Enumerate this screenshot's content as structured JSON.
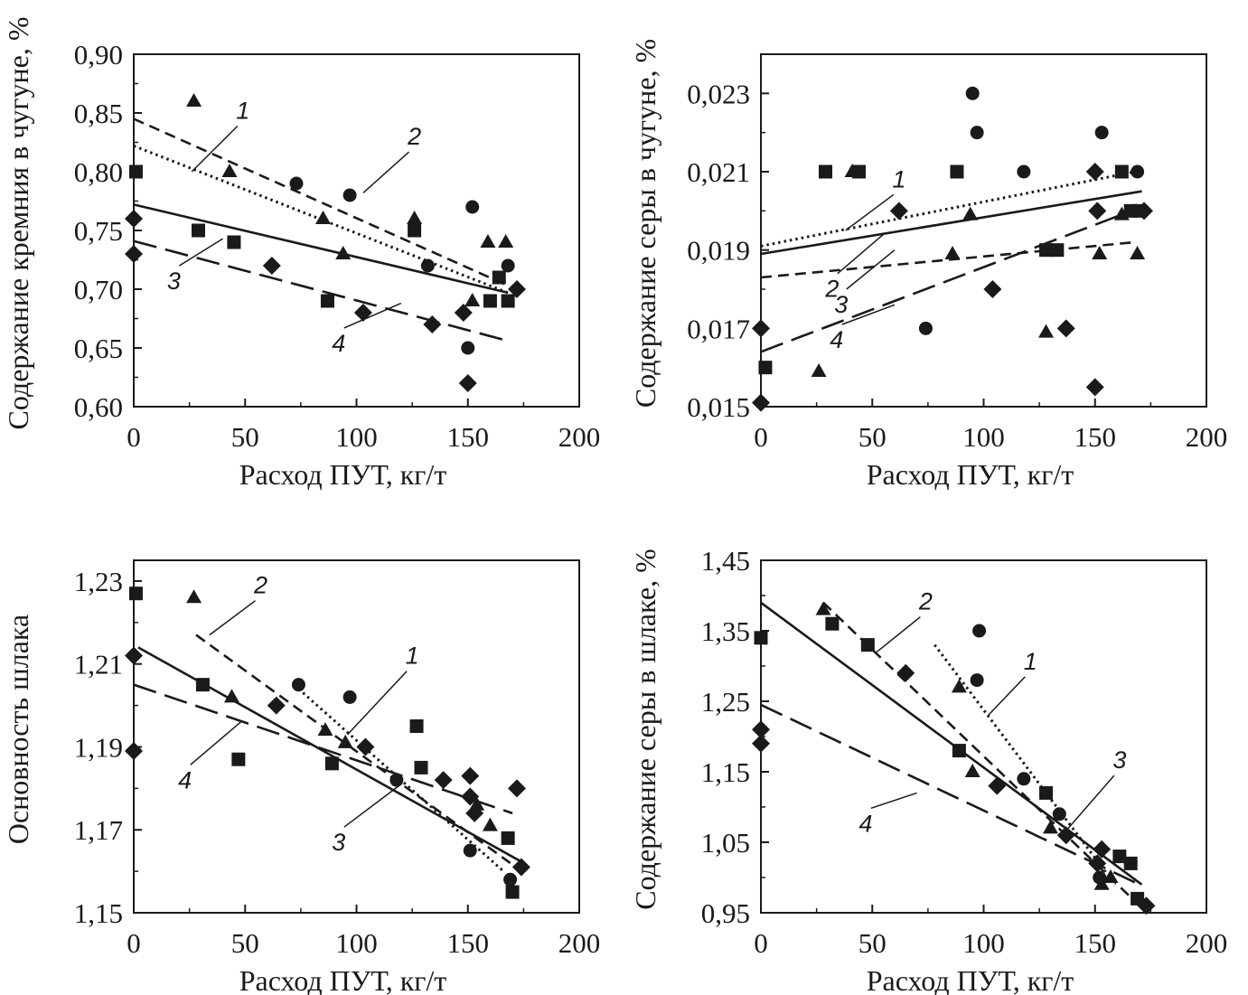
{
  "chart_data": [
    {
      "type": "scatter",
      "xlabel": "Расход ПУТ, кг/т",
      "ylabel": "Содержание кремния в чугуне, %",
      "xlim": [
        0,
        200
      ],
      "ylim": [
        0.6,
        0.9
      ],
      "xticks": [
        0,
        50,
        100,
        150,
        200
      ],
      "yticks": [
        0.6,
        0.65,
        0.7,
        0.75,
        0.8,
        0.85,
        0.9
      ],
      "xtick_labels": [
        "0",
        "50",
        "100",
        "150",
        "200"
      ],
      "ytick_labels": [
        "0,60",
        "0,65",
        "0,70",
        "0,75",
        "0,80",
        "0,85",
        "0,90"
      ],
      "grid": false,
      "series": [
        {
          "label": "1",
          "marker": "circle",
          "line": "dotted",
          "points": [
            [
              73,
              0.79
            ],
            [
              97,
              0.78
            ],
            [
              132,
              0.72
            ],
            [
              152,
              0.77
            ],
            [
              150,
              0.65
            ],
            [
              168,
              0.72
            ]
          ],
          "fit": [
            [
              0,
              0.822
            ],
            [
              168,
              0.697
            ]
          ]
        },
        {
          "label": "2",
          "marker": "triangle",
          "line": "dashed",
          "points": [
            [
              27,
              0.86
            ],
            [
              43,
              0.8
            ],
            [
              85,
              0.76
            ],
            [
              94,
              0.73
            ],
            [
              126,
              0.76
            ],
            [
              152,
              0.69
            ],
            [
              159,
              0.74
            ],
            [
              167,
              0.74
            ]
          ],
          "fit": [
            [
              0,
              0.845
            ],
            [
              168,
              0.703
            ]
          ]
        },
        {
          "label": "3",
          "marker": "square",
          "line": "solid",
          "points": [
            [
              1,
              0.8
            ],
            [
              29,
              0.75
            ],
            [
              45,
              0.74
            ],
            [
              87,
              0.69
            ],
            [
              126,
              0.75
            ],
            [
              160,
              0.69
            ],
            [
              164,
              0.71
            ],
            [
              168,
              0.69
            ]
          ],
          "fit": [
            [
              0,
              0.772
            ],
            [
              168,
              0.697
            ]
          ]
        },
        {
          "label": "4",
          "marker": "diamond",
          "line": "longdash",
          "points": [
            [
              0,
              0.76
            ],
            [
              0,
              0.73
            ],
            [
              62,
              0.72
            ],
            [
              103,
              0.68
            ],
            [
              134,
              0.67
            ],
            [
              148,
              0.68
            ],
            [
              150,
              0.62
            ],
            [
              172,
              0.7
            ]
          ],
          "fit": [
            [
              0,
              0.741
            ],
            [
              166,
              0.657
            ]
          ]
        }
      ],
      "annotations": [
        {
          "text": "1",
          "x": 49,
          "y": 0.845,
          "to": [
            26,
            0.8
          ]
        },
        {
          "text": "2",
          "x": 126,
          "y": 0.823,
          "to": [
            103,
            0.782
          ]
        },
        {
          "text": "3",
          "x": 18,
          "y": 0.7,
          "to": [
            40,
            0.743
          ]
        },
        {
          "text": "4",
          "x": 92,
          "y": 0.647,
          "to": [
            120,
            0.688
          ]
        }
      ]
    },
    {
      "type": "scatter",
      "xlabel": "Расход ПУТ, кг/т",
      "ylabel": "Содержание серы в чугуне, %",
      "xlim": [
        0,
        200
      ],
      "ylim": [
        0.015,
        0.024
      ],
      "xticks": [
        0,
        50,
        100,
        150,
        200
      ],
      "yticks": [
        0.015,
        0.017,
        0.019,
        0.021,
        0.023
      ],
      "xtick_labels": [
        "0",
        "50",
        "100",
        "150",
        "200"
      ],
      "ytick_labels": [
        "0,015",
        "0,017",
        "0,019",
        "0,021",
        "0,023"
      ],
      "grid": false,
      "series": [
        {
          "label": "1",
          "marker": "circle",
          "line": "dotted",
          "points": [
            [
              74,
              0.017
            ],
            [
              95,
              0.023
            ],
            [
              97,
              0.022
            ],
            [
              118,
              0.021
            ],
            [
              153,
              0.022
            ],
            [
              169,
              0.021
            ]
          ],
          "fit": [
            [
              0,
              0.0191
            ],
            [
              168,
              0.021
            ]
          ]
        },
        {
          "label": "2",
          "marker": "triangle",
          "line": "dashed",
          "points": [
            [
              26,
              0.0159
            ],
            [
              41,
              0.021
            ],
            [
              86,
              0.0189
            ],
            [
              94,
              0.0199
            ],
            [
              128,
              0.0169
            ],
            [
              152,
              0.0189
            ],
            [
              162,
              0.0199
            ],
            [
              169,
              0.0189
            ]
          ],
          "fit": [
            [
              0,
              0.0183
            ],
            [
              168,
              0.0192
            ]
          ]
        },
        {
          "label": "3",
          "marker": "square",
          "line": "solid",
          "points": [
            [
              2,
              0.016
            ],
            [
              29,
              0.021
            ],
            [
              44,
              0.021
            ],
            [
              88,
              0.021
            ],
            [
              128,
              0.019
            ],
            [
              133,
              0.019
            ],
            [
              162,
              0.021
            ],
            [
              166,
              0.02
            ],
            [
              170,
              0.02
            ]
          ],
          "fit": [
            [
              0,
              0.0189
            ],
            [
              171,
              0.0205
            ]
          ]
        },
        {
          "label": "4",
          "marker": "diamond",
          "line": "longdash",
          "points": [
            [
              0,
              0.017
            ],
            [
              0,
              0.0151
            ],
            [
              62,
              0.02
            ],
            [
              104,
              0.018
            ],
            [
              137,
              0.017
            ],
            [
              150,
              0.0155
            ],
            [
              150,
              0.021
            ],
            [
              151,
              0.02
            ],
            [
              172,
              0.02
            ]
          ],
          "fit": [
            [
              0,
              0.0164
            ],
            [
              171,
              0.0201
            ]
          ]
        }
      ],
      "annotations": [
        {
          "text": "1",
          "x": 62,
          "y": 0.0206,
          "to": [
            38,
            0.0195
          ]
        },
        {
          "text": "2",
          "x": 32,
          "y": 0.0178,
          "to": [
            55,
            0.0194
          ]
        },
        {
          "text": "3",
          "x": 36,
          "y": 0.0174,
          "to": [
            60,
            0.019
          ]
        },
        {
          "text": "4",
          "x": 34,
          "y": 0.0165,
          "to": [
            60,
            0.0176
          ]
        }
      ]
    },
    {
      "type": "scatter",
      "xlabel": "Расход ПУТ, кг/т",
      "ylabel": "Основность шлака",
      "xlim": [
        0,
        200
      ],
      "ylim": [
        1.15,
        1.235
      ],
      "xticks": [
        0,
        50,
        100,
        150,
        200
      ],
      "yticks": [
        1.15,
        1.17,
        1.19,
        1.21,
        1.23
      ],
      "xtick_labels": [
        "0",
        "50",
        "100",
        "150",
        "200"
      ],
      "ytick_labels": [
        "1,15",
        "1,17",
        "1,19",
        "1,21",
        "1,23"
      ],
      "grid": false,
      "series": [
        {
          "label": "1",
          "marker": "circle",
          "line": "dotted",
          "points": [
            [
              74,
              1.205
            ],
            [
              97,
              1.202
            ],
            [
              118,
              1.182
            ],
            [
              151,
              1.165
            ],
            [
              169,
              1.158
            ]
          ],
          "fit": [
            [
              74,
              1.204
            ],
            [
              166,
              1.16
            ]
          ]
        },
        {
          "label": "2",
          "marker": "triangle",
          "line": "dashed",
          "points": [
            [
              27,
              1.226
            ],
            [
              44,
              1.202
            ],
            [
              86,
              1.194
            ],
            [
              95,
              1.191
            ],
            [
              154,
              1.176
            ],
            [
              160,
              1.171
            ]
          ],
          "fit": [
            [
              28,
              1.217
            ],
            [
              169,
              1.162
            ]
          ]
        },
        {
          "label": "3",
          "marker": "square",
          "line": "solid",
          "points": [
            [
              1,
              1.227
            ],
            [
              31,
              1.205
            ],
            [
              47,
              1.187
            ],
            [
              89,
              1.186
            ],
            [
              127,
              1.195
            ],
            [
              129,
              1.185
            ],
            [
              168,
              1.168
            ],
            [
              170,
              1.155
            ]
          ],
          "fit": [
            [
              2,
              1.214
            ],
            [
              175,
              1.162
            ]
          ]
        },
        {
          "label": "4",
          "marker": "diamond",
          "line": "longdash",
          "points": [
            [
              0,
              1.212
            ],
            [
              0,
              1.189
            ],
            [
              64,
              1.2
            ],
            [
              104,
              1.19
            ],
            [
              139,
              1.182
            ],
            [
              151,
              1.183
            ],
            [
              151,
              1.178
            ],
            [
              153,
              1.174
            ],
            [
              172,
              1.18
            ],
            [
              174,
              1.161
            ]
          ],
          "fit": [
            [
              0,
              1.205
            ],
            [
              170,
              1.174
            ]
          ]
        }
      ],
      "annotations": [
        {
          "text": "1",
          "x": 125,
          "y": 1.21,
          "to": [
            96,
            1.193
          ]
        },
        {
          "text": "2",
          "x": 57,
          "y": 1.227,
          "to": [
            34,
            1.217
          ]
        },
        {
          "text": "3",
          "x": 92,
          "y": 1.165,
          "to": [
            120,
            1.181
          ]
        },
        {
          "text": "4",
          "x": 23,
          "y": 1.18,
          "to": [
            48,
            1.196
          ]
        }
      ]
    },
    {
      "type": "scatter",
      "xlabel": "Расход ПУТ, кг/т",
      "ylabel": "Содержание серы в шлаке, %",
      "xlim": [
        0,
        200
      ],
      "ylim": [
        0.95,
        1.45
      ],
      "xticks": [
        0,
        50,
        100,
        150,
        200
      ],
      "yticks": [
        0.95,
        1.05,
        1.15,
        1.25,
        1.35,
        1.45
      ],
      "xtick_labels": [
        "0",
        "50",
        "100",
        "150",
        "200"
      ],
      "ytick_labels": [
        "0,95",
        "1,05",
        "1,15",
        "1,25",
        "1,35",
        "1,45"
      ],
      "grid": false,
      "series": [
        {
          "label": "1",
          "marker": "circle",
          "line": "dotted",
          "points": [
            [
              98,
              1.35
            ],
            [
              97,
              1.28
            ],
            [
              118,
              1.14
            ],
            [
              134,
              1.09
            ],
            [
              152,
              1.0
            ]
          ],
          "fit": [
            [
              78,
              1.33
            ],
            [
              159,
              0.99
            ]
          ]
        },
        {
          "label": "2",
          "marker": "triangle",
          "line": "dashed",
          "points": [
            [
              28,
              1.38
            ],
            [
              89,
              1.27
            ],
            [
              95,
              1.15
            ],
            [
              130,
              1.07
            ],
            [
              153,
              0.99
            ],
            [
              157,
              1.0
            ]
          ],
          "fit": [
            [
              28,
              1.39
            ],
            [
              170,
              0.96
            ]
          ]
        },
        {
          "label": "3",
          "marker": "square",
          "line": "solid",
          "points": [
            [
              0,
              1.34
            ],
            [
              32,
              1.36
            ],
            [
              48,
              1.33
            ],
            [
              89,
              1.18
            ],
            [
              128,
              1.12
            ],
            [
              161,
              1.03
            ],
            [
              166,
              1.02
            ],
            [
              169,
              0.97
            ]
          ],
          "fit": [
            [
              0,
              1.39
            ],
            [
              171,
              0.99
            ]
          ]
        },
        {
          "label": "4",
          "marker": "diamond",
          "line": "longdash",
          "points": [
            [
              0,
              1.21
            ],
            [
              0,
              1.19
            ],
            [
              65,
              1.29
            ],
            [
              106,
              1.13
            ],
            [
              137,
              1.06
            ],
            [
              151,
              1.02
            ],
            [
              153,
              1.04
            ],
            [
              173,
              0.96
            ]
          ],
          "fit": [
            [
              0,
              1.245
            ],
            [
              170,
              0.99
            ]
          ]
        }
      ],
      "annotations": [
        {
          "text": "1",
          "x": 121,
          "y": 1.295,
          "to": [
            102,
            1.23
          ]
        },
        {
          "text": "2",
          "x": 74,
          "y": 1.38,
          "to": [
            52,
            1.32
          ]
        },
        {
          "text": "3",
          "x": 161,
          "y": 1.155,
          "to": [
            138,
            1.07
          ]
        },
        {
          "text": "4",
          "x": 47,
          "y": 1.065,
          "to": [
            70,
            1.12
          ]
        }
      ]
    }
  ]
}
